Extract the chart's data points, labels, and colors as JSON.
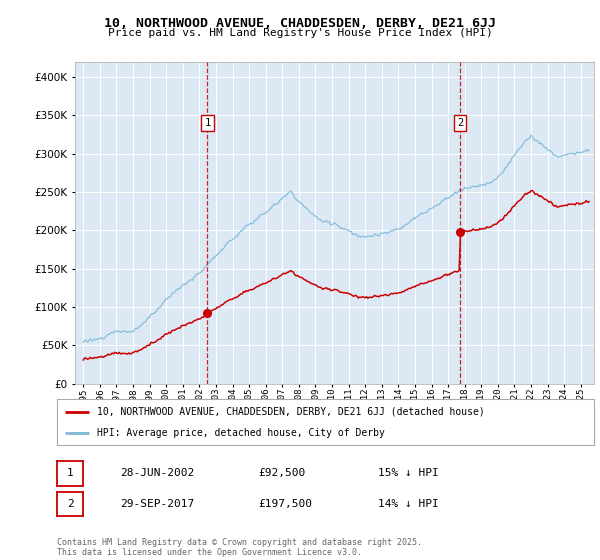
{
  "title_line1": "10, NORTHWOOD AVENUE, CHADDESDEN, DERBY, DE21 6JJ",
  "title_line2": "Price paid vs. HM Land Registry's House Price Index (HPI)",
  "background_color": "#ffffff",
  "plot_bg_color": "#dce9f5",
  "hpi_color": "#7eb8d8",
  "price_color": "#cc0000",
  "marker1_date_num": 2002.49,
  "marker1_price": 92500,
  "marker2_date_num": 2017.74,
  "marker2_price": 197500,
  "ylim": [
    0,
    420000
  ],
  "yticks": [
    0,
    50000,
    100000,
    150000,
    200000,
    250000,
    300000,
    350000,
    400000
  ],
  "xlabel_years": [
    1995,
    1996,
    1997,
    1998,
    1999,
    2000,
    2001,
    2002,
    2003,
    2004,
    2005,
    2006,
    2007,
    2008,
    2009,
    2010,
    2011,
    2012,
    2013,
    2014,
    2015,
    2016,
    2017,
    2018,
    2019,
    2020,
    2021,
    2022,
    2023,
    2024,
    2025
  ],
  "xlim_left": 1994.5,
  "xlim_right": 2025.8,
  "legend_entry1": "10, NORTHWOOD AVENUE, CHADDESDEN, DERBY, DE21 6JJ (detached house)",
  "legend_entry2": "HPI: Average price, detached house, City of Derby",
  "annotation1_date": "28-JUN-2002",
  "annotation1_price_str": "£92,500",
  "annotation1_hpi_str": "15% ↓ HPI",
  "annotation2_date": "29-SEP-2017",
  "annotation2_price_str": "£197,500",
  "annotation2_hpi_str": "14% ↓ HPI",
  "footer": "Contains HM Land Registry data © Crown copyright and database right 2025.\nThis data is licensed under the Open Government Licence v3.0."
}
